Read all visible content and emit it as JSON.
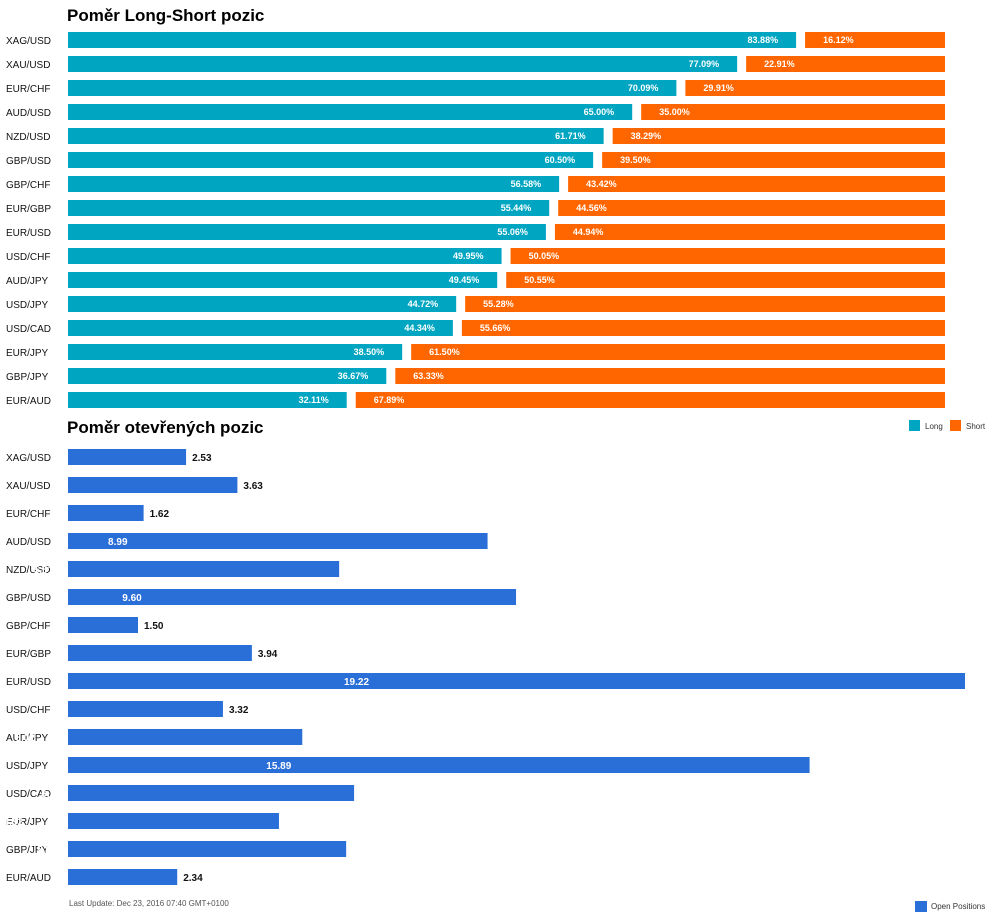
{
  "colors": {
    "long": "#00a5c2",
    "short": "#ff6600",
    "open": "#2a6ed8"
  },
  "chart_data": [
    {
      "type": "bar",
      "orientation": "horizontal",
      "stacked": "percent",
      "title": "Poměr Long-Short pozic",
      "categories": [
        "XAG/USD",
        "XAU/USD",
        "EUR/CHF",
        "AUD/USD",
        "NZD/USD",
        "GBP/USD",
        "GBP/CHF",
        "EUR/GBP",
        "EUR/USD",
        "USD/CHF",
        "AUD/JPY",
        "USD/JPY",
        "USD/CAD",
        "EUR/JPY",
        "GBP/JPY",
        "EUR/AUD"
      ],
      "series": [
        {
          "name": "Long",
          "values": [
            83.88,
            77.09,
            70.09,
            65.0,
            61.71,
            60.5,
            56.58,
            55.44,
            55.06,
            49.95,
            49.45,
            44.72,
            44.34,
            38.5,
            36.67,
            32.11
          ]
        },
        {
          "name": "Short",
          "values": [
            16.12,
            22.91,
            29.91,
            35.0,
            38.29,
            39.5,
            43.42,
            44.56,
            44.94,
            50.05,
            50.55,
            55.28,
            55.66,
            61.5,
            63.33,
            67.89
          ]
        }
      ],
      "value_labels": {
        "long": [
          "83.88%",
          "77.09%",
          "70.09%",
          "65.00%",
          "61.71%",
          "60.50%",
          "56.58%",
          "55.44%",
          "55.06%",
          "49.95%",
          "49.45%",
          "44.72%",
          "44.34%",
          "38.50%",
          "36.67%",
          "32.11%"
        ],
        "short": [
          "16.12%",
          "22.91%",
          "29.91%",
          "35.00%",
          "38.29%",
          "39.50%",
          "43.42%",
          "44.56%",
          "44.94%",
          "50.05%",
          "50.55%",
          "55.28%",
          "55.66%",
          "61.50%",
          "63.33%",
          "67.89%"
        ]
      },
      "legend": [
        "Long",
        "Short"
      ],
      "legend_position": "bottom-right",
      "xlim": [
        0,
        100
      ],
      "grid": false
    },
    {
      "type": "bar",
      "orientation": "horizontal",
      "title": "Poměr otevřených pozic",
      "categories": [
        "XAG/USD",
        "XAU/USD",
        "EUR/CHF",
        "AUD/USD",
        "NZD/USD",
        "GBP/USD",
        "GBP/CHF",
        "EUR/GBP",
        "EUR/USD",
        "USD/CHF",
        "AUD/JPY",
        "USD/JPY",
        "USD/CAD",
        "EUR/JPY",
        "GBP/JPY",
        "EUR/AUD"
      ],
      "series": [
        {
          "name": "Open Positions",
          "values": [
            2.53,
            3.63,
            1.62,
            8.99,
            5.81,
            9.6,
            1.5,
            3.94,
            19.22,
            3.32,
            5.02,
            15.89,
            6.13,
            4.52,
            5.96,
            2.34
          ]
        }
      ],
      "value_labels": [
        "2.53",
        "3.63",
        "1.62",
        "8.99",
        "5.81",
        "9.60",
        "1.50",
        "3.94",
        "19.22",
        "3.32",
        "5.02",
        "15.89",
        "6.13",
        "4.52",
        "5.96",
        "2.34"
      ],
      "legend": [
        "Open Positions"
      ],
      "legend_position": "bottom-right",
      "xlim": [
        0,
        19.22
      ],
      "grid": false
    }
  ],
  "footer": "Last Update: Dec 23, 2016 07:40 GMT+0100"
}
